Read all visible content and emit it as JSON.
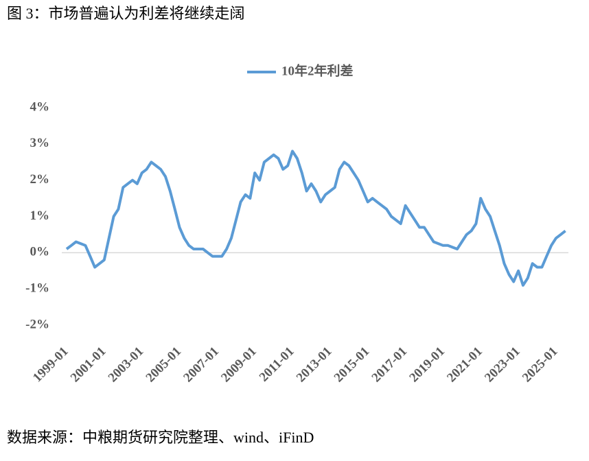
{
  "chart_data": {
    "type": "line",
    "title": "图 3：市场普遍认为利差将继续走阔",
    "source": "数据来源：中粮期货研究院整理、wind、iFinD",
    "x": [
      "1999-01",
      "1999-04",
      "1999-07",
      "1999-10",
      "2000-01",
      "2000-04",
      "2000-07",
      "2000-10",
      "2001-01",
      "2001-04",
      "2001-07",
      "2001-10",
      "2002-01",
      "2002-04",
      "2002-07",
      "2002-10",
      "2003-01",
      "2003-04",
      "2003-07",
      "2003-10",
      "2004-01",
      "2004-04",
      "2004-07",
      "2004-10",
      "2005-01",
      "2005-04",
      "2005-07",
      "2005-10",
      "2006-01",
      "2006-04",
      "2006-07",
      "2006-10",
      "2007-01",
      "2007-04",
      "2007-07",
      "2007-10",
      "2008-01",
      "2008-04",
      "2008-07",
      "2008-10",
      "2009-01",
      "2009-04",
      "2009-07",
      "2009-10",
      "2010-01",
      "2010-04",
      "2010-07",
      "2010-10",
      "2011-01",
      "2011-04",
      "2011-07",
      "2011-10",
      "2012-01",
      "2012-04",
      "2012-07",
      "2012-10",
      "2013-01",
      "2013-04",
      "2013-07",
      "2013-10",
      "2014-01",
      "2014-04",
      "2014-07",
      "2014-10",
      "2015-01",
      "2015-04",
      "2015-07",
      "2015-10",
      "2016-01",
      "2016-04",
      "2016-07",
      "2016-10",
      "2017-01",
      "2017-04",
      "2017-07",
      "2017-10",
      "2018-01",
      "2018-04",
      "2018-07",
      "2018-10",
      "2019-01",
      "2019-04",
      "2019-07",
      "2019-10",
      "2020-01",
      "2020-04",
      "2020-07",
      "2020-10",
      "2021-01",
      "2021-04",
      "2021-07",
      "2021-10",
      "2022-01",
      "2022-04",
      "2022-07",
      "2022-10",
      "2023-01",
      "2023-04",
      "2023-07",
      "2023-10",
      "2024-01",
      "2024-04",
      "2024-07",
      "2024-10",
      "2025-01",
      "2025-04",
      "2025-07"
    ],
    "series": [
      {
        "name": "10年2年利差",
        "color": "#5b9bd5",
        "values": [
          0.1,
          0.2,
          0.3,
          0.25,
          0.2,
          -0.1,
          -0.4,
          -0.3,
          -0.2,
          0.4,
          1.0,
          1.2,
          1.8,
          1.9,
          2.0,
          1.9,
          2.2,
          2.3,
          2.5,
          2.4,
          2.3,
          2.1,
          1.7,
          1.2,
          0.7,
          0.4,
          0.2,
          0.1,
          0.1,
          0.1,
          0.0,
          -0.1,
          -0.1,
          -0.1,
          0.1,
          0.4,
          0.9,
          1.4,
          1.6,
          1.5,
          2.2,
          2.0,
          2.5,
          2.6,
          2.7,
          2.6,
          2.3,
          2.4,
          2.8,
          2.6,
          2.2,
          1.7,
          1.9,
          1.7,
          1.4,
          1.6,
          1.7,
          1.8,
          2.3,
          2.5,
          2.4,
          2.2,
          2.0,
          1.7,
          1.4,
          1.5,
          1.4,
          1.3,
          1.2,
          1.0,
          0.9,
          0.8,
          1.3,
          1.1,
          0.9,
          0.7,
          0.7,
          0.5,
          0.3,
          0.25,
          0.2,
          0.2,
          0.15,
          0.1,
          0.3,
          0.5,
          0.6,
          0.8,
          1.5,
          1.2,
          1.0,
          0.6,
          0.2,
          -0.3,
          -0.6,
          -0.8,
          -0.5,
          -0.9,
          -0.7,
          -0.3,
          -0.4,
          -0.4,
          -0.1,
          0.2,
          0.4,
          0.5,
          0.6
        ]
      }
    ],
    "xticks": [
      "1999-01",
      "2001-01",
      "2003-01",
      "2005-01",
      "2007-01",
      "2009-01",
      "2011-01",
      "2013-01",
      "2015-01",
      "2017-01",
      "2019-01",
      "2021-01",
      "2023-01",
      "2025-01"
    ],
    "ylim": [
      -2,
      4
    ],
    "yticks": [
      {
        "value": -2,
        "label": "-2%"
      },
      {
        "value": -1,
        "label": "-1%"
      },
      {
        "value": 0,
        "label": "0%"
      },
      {
        "value": 1,
        "label": "1%"
      },
      {
        "value": 2,
        "label": "2%"
      },
      {
        "value": 3,
        "label": "3%"
      },
      {
        "value": 4,
        "label": "4%"
      }
    ],
    "grid": false
  }
}
